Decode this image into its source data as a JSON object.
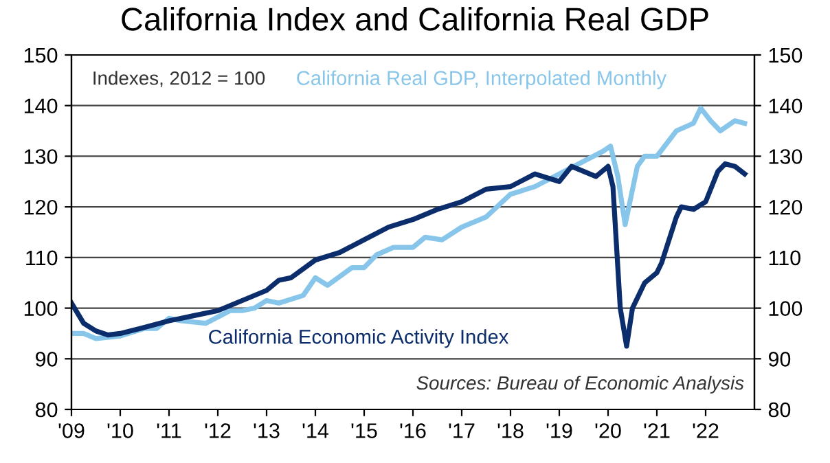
{
  "chart_data": {
    "type": "line",
    "title": "California Index and California Real GDP",
    "x": [
      2009.0,
      2009.25,
      2009.5,
      2009.75,
      2010.0,
      2010.5,
      2011.0,
      2011.5,
      2012.0,
      2012.5,
      2013.0,
      2013.25,
      2013.5,
      2014.0,
      2014.5,
      2015.0,
      2015.5,
      2016.0,
      2016.5,
      2017.0,
      2017.5,
      2018.0,
      2018.5,
      2019.0,
      2019.25,
      2019.75,
      2020.0,
      2020.1,
      2020.25,
      2020.38,
      2020.5,
      2020.75,
      2021.0,
      2021.1,
      2021.4,
      2021.5,
      2021.75,
      2022.0,
      2022.25,
      2022.4,
      2022.6,
      2022.8
    ],
    "series": [
      {
        "name": "California Real GDP, Interpolated Monthly",
        "color": "#87c6ea",
        "x": [
          2009.0,
          2009.25,
          2009.5,
          2010.0,
          2010.5,
          2010.75,
          2011.0,
          2011.25,
          2011.75,
          2012.25,
          2012.5,
          2012.75,
          2013.0,
          2013.25,
          2013.75,
          2014.0,
          2014.25,
          2014.75,
          2015.0,
          2015.25,
          2015.6,
          2016.0,
          2016.25,
          2016.6,
          2017.0,
          2017.5,
          2018.0,
          2018.5,
          2019.0,
          2019.5,
          2019.9,
          2020.05,
          2020.2,
          2020.35,
          2020.6,
          2020.75,
          2021.0,
          2021.4,
          2021.75,
          2021.9,
          2022.1,
          2022.3,
          2022.6,
          2022.8
        ],
        "values": [
          95,
          95,
          94,
          94.5,
          96,
          96,
          98,
          97.5,
          97,
          99.5,
          99.5,
          100,
          101.5,
          101,
          102.5,
          106,
          104.5,
          108,
          108,
          110.5,
          112,
          112,
          114,
          113.5,
          116,
          118,
          122.5,
          124,
          126.5,
          129,
          131,
          132,
          126,
          116.5,
          128,
          130,
          130,
          135,
          136.5,
          139.5,
          137,
          135,
          137,
          136.5
        ]
      },
      {
        "name": "California Economic Activity Index",
        "color": "#0b2d6b",
        "values": [
          101,
          97,
          95.5,
          94.7,
          95,
          96.2,
          97.5,
          98.5,
          99.5,
          101.5,
          103.5,
          105.5,
          106,
          109.5,
          111,
          113.5,
          116,
          117.5,
          119.5,
          121,
          123.5,
          124,
          126.5,
          125,
          128,
          126,
          128,
          124,
          100,
          92.5,
          100,
          105,
          107,
          109,
          118,
          120,
          119.5,
          121,
          127,
          128.5,
          128,
          126.5
        ]
      }
    ],
    "xlim": [
      2009,
      2023
    ],
    "xticks": [
      {
        "value": 2009,
        "label": "'09"
      },
      {
        "value": 2010,
        "label": "'10"
      },
      {
        "value": 2011,
        "label": "'11"
      },
      {
        "value": 2012,
        "label": "'12"
      },
      {
        "value": 2013,
        "label": "'13"
      },
      {
        "value": 2014,
        "label": "'14"
      },
      {
        "value": 2015,
        "label": "'15"
      },
      {
        "value": 2016,
        "label": "'16"
      },
      {
        "value": 2017,
        "label": "'17"
      },
      {
        "value": 2018,
        "label": "'18"
      },
      {
        "value": 2019,
        "label": "'19"
      },
      {
        "value": 2020,
        "label": "'20"
      },
      {
        "value": 2021,
        "label": "'21"
      },
      {
        "value": 2022,
        "label": "'22"
      }
    ],
    "ylim": [
      80,
      150
    ],
    "yticks": [
      80,
      90,
      100,
      110,
      120,
      130,
      140,
      150
    ],
    "y2lim": [
      80,
      150
    ],
    "y2ticks": [
      80,
      90,
      100,
      110,
      120,
      130,
      140,
      150
    ],
    "grid": "y",
    "legend": false,
    "marker": "none",
    "line_style": "solid",
    "annotations": [
      "Indexes, 2012 = 100",
      "Sources: Bureau of Economic Analysis"
    ]
  }
}
